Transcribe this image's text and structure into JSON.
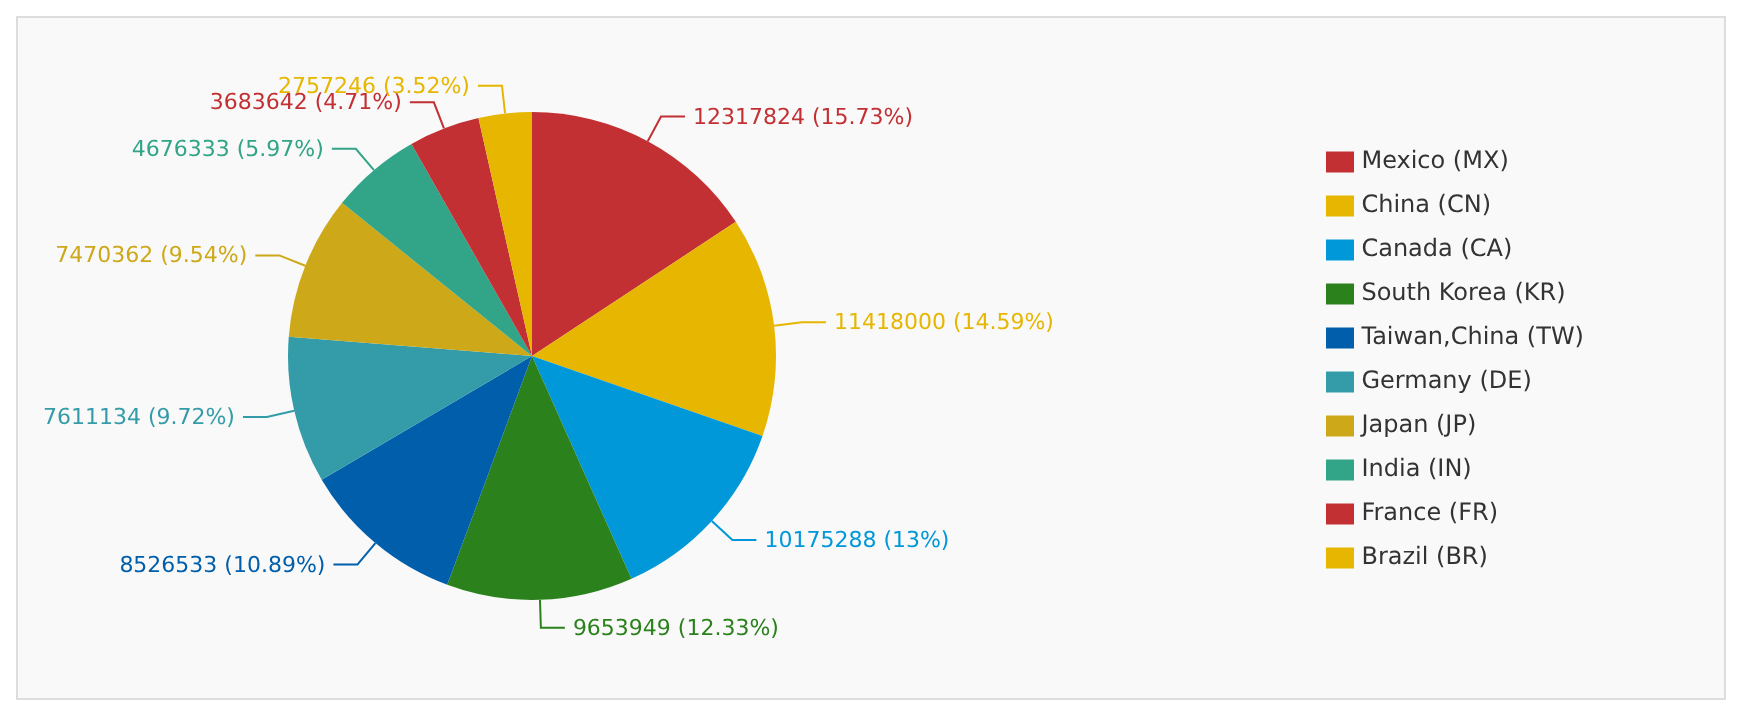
{
  "chart_data": {
    "type": "pie",
    "categories": [
      "Mexico (MX)",
      "China (CN)",
      "Canada (CA)",
      "South Korea (KR)",
      "Taiwan,China (TW)",
      "Germany (DE)",
      "Japan (JP)",
      "India (IN)",
      "France (FR)",
      "Brazil (BR)"
    ],
    "values": [
      12317824,
      11418000,
      10175288,
      9653949,
      8526533,
      7611134,
      7470362,
      4676333,
      3683642,
      2757246
    ],
    "value_labels": [
      "12317824 (15.73%)",
      "11418000 (14.59%)",
      "10175288 (13%)",
      "9653949 (12.33%)",
      "8526533 (10.89%)",
      "7611134 (9.72%)",
      "7470362 (9.54%)",
      "4676333 (5.97%)",
      "3683642 (4.71%)",
      "2757246 (3.52%)"
    ],
    "colors": [
      "#c23034",
      "#e6b600",
      "#0098d9",
      "#2b821d",
      "#005eaa",
      "#339ca8",
      "#cda819",
      "#32a487",
      "#c23034",
      "#e6b600"
    ],
    "legend": "right"
  }
}
